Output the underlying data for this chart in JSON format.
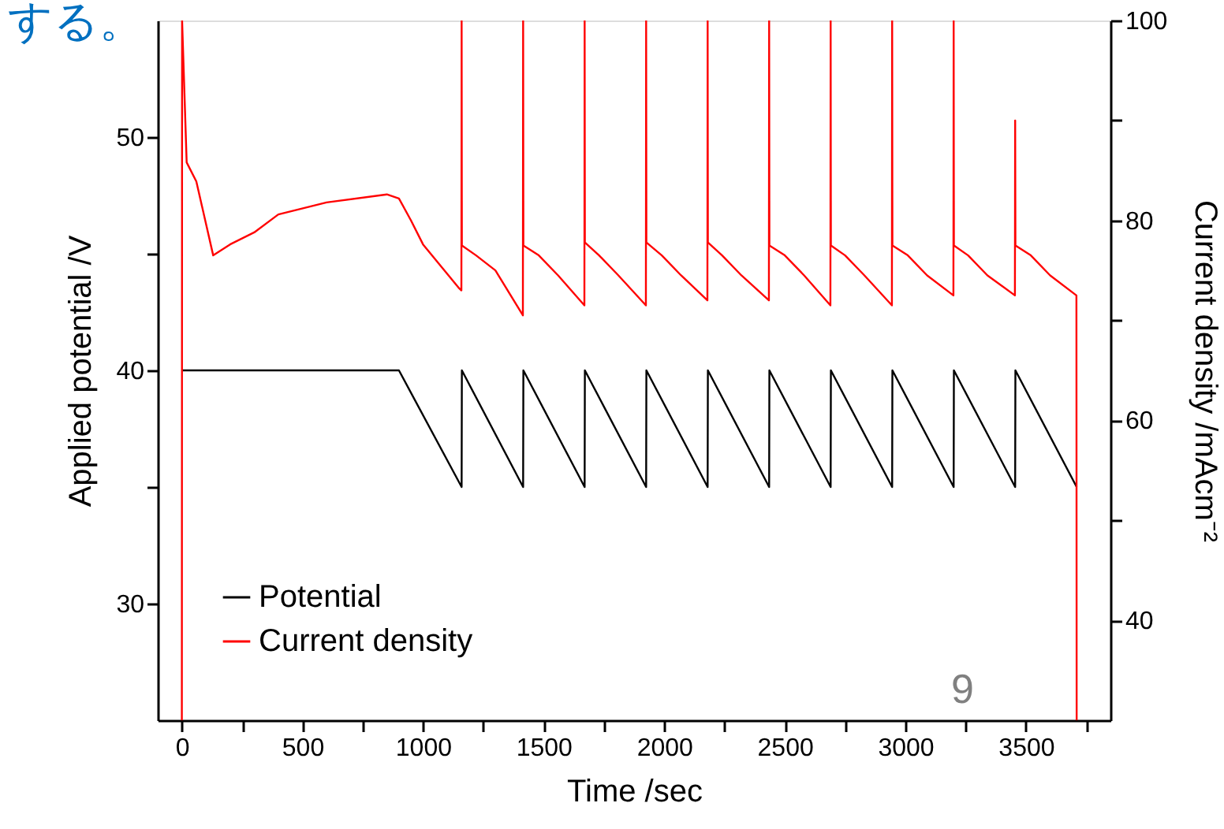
{
  "chart_data": {
    "type": "line",
    "xlabel": "Time /sec",
    "ylabel": "Applied potential /V",
    "y2label": "Current density /mAcm⁻²",
    "xlim": [
      -100,
      3850
    ],
    "xticks": [
      0,
      {
        "value": 250,
        "label": null
      },
      500,
      {
        "value": 750,
        "label": null
      },
      1000,
      {
        "value": 1250,
        "label": null
      },
      1500,
      {
        "value": 1750,
        "label": null
      },
      2000,
      {
        "value": 2250,
        "label": null
      },
      2500,
      {
        "value": 2750,
        "label": null
      },
      3000,
      {
        "value": 3250,
        "label": null
      },
      3500,
      {
        "value": 3750,
        "label": null
      }
    ],
    "ylim": [
      25,
      55
    ],
    "yticks": [
      30,
      {
        "value": 35,
        "label": null
      },
      40,
      {
        "value": 45,
        "label": null
      },
      50
    ],
    "y2lim": [
      30,
      100
    ],
    "y2ticks": [
      40,
      {
        "value": 50,
        "label": null
      },
      60,
      {
        "value": 70,
        "label": null
      },
      80,
      {
        "value": 90,
        "label": null
      },
      100
    ],
    "grid": false,
    "legend": "bottom left",
    "line_style": "solid",
    "marker": "none",
    "annotations": [
      "する。",
      "9"
    ],
    "series": [
      {
        "name": "Potential",
        "color": "#000000",
        "x": [
          0,
          900,
          1160,
          1161,
          1415,
          1416,
          1670,
          1671,
          1925,
          1926,
          2180,
          2181,
          2435,
          2436,
          2690,
          2691,
          2945,
          2946,
          3200,
          3201,
          3455,
          3456,
          3710
        ],
        "values": [
          40,
          40,
          35,
          40,
          35,
          40,
          35,
          40,
          35,
          40,
          35,
          40,
          35,
          40,
          35,
          40,
          35,
          40,
          35,
          40,
          35,
          40,
          35
        ]
      },
      {
        "name": "Current density",
        "color": "#ff0000",
        "axis": "y2",
        "x": [
          0,
          1,
          20,
          60,
          130,
          200,
          300,
          400,
          600,
          850,
          900,
          950,
          1000,
          1150,
          1159,
          1160,
          1161,
          1220,
          1300,
          1414,
          1415,
          1416,
          1480,
          1560,
          1669,
          1670,
          1671,
          1730,
          1810,
          1924,
          1925,
          1926,
          1990,
          2070,
          2179,
          2180,
          2181,
          2240,
          2320,
          2434,
          2435,
          2436,
          2500,
          2580,
          2689,
          2690,
          2691,
          2750,
          2830,
          2944,
          2945,
          2946,
          3010,
          3090,
          3199,
          3200,
          3201,
          3260,
          3340,
          3454,
          3455,
          3456,
          3520,
          3600,
          3709,
          3710
        ],
        "values": [
          30,
          100,
          85.8,
          83.9,
          76.5,
          77.6,
          78.8,
          80.6,
          81.8,
          82.6,
          82.2,
          80,
          77.6,
          73.2,
          73,
          100,
          77.5,
          76.5,
          75,
          70.5,
          100,
          77.5,
          76.5,
          74.5,
          71.5,
          100,
          77.8,
          76.5,
          74.5,
          71.5,
          100,
          77.8,
          76.5,
          74.5,
          72,
          100,
          77.8,
          76.5,
          74.5,
          72,
          100,
          77.5,
          76.5,
          74.5,
          71.5,
          100,
          77.5,
          76.5,
          74.5,
          71.5,
          100,
          77.5,
          76.5,
          74.5,
          72.5,
          100,
          77.5,
          76.5,
          74.5,
          72.5,
          90,
          77.5,
          76.5,
          74.5,
          72.5,
          30
        ]
      }
    ]
  }
}
